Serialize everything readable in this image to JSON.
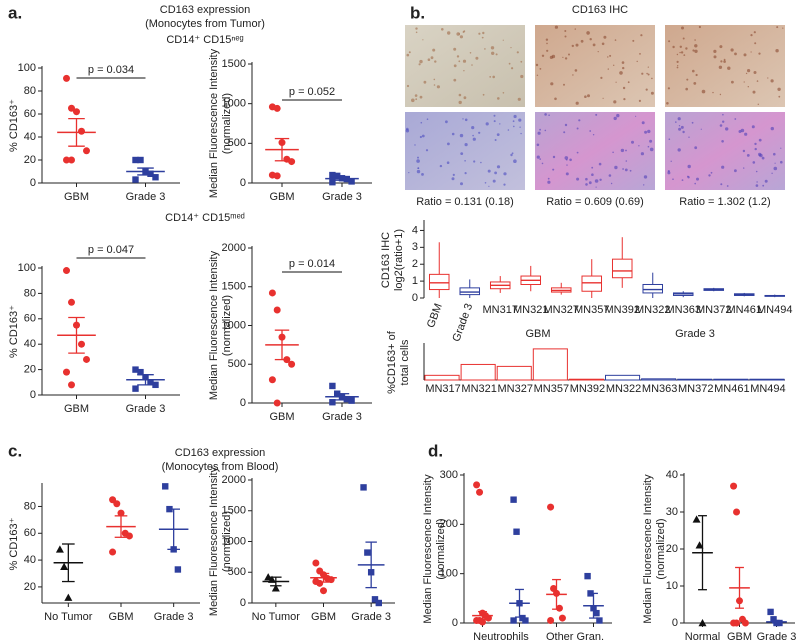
{
  "panel_labels": [
    "a.",
    "b.",
    "c.",
    "d."
  ],
  "headings": {
    "a_title": "CD163 expression",
    "a_subtitle": "(Monocytes from Tumor)",
    "b_title": "CD163 IHC",
    "c_title": "CD163 expression",
    "c_subtitle": "(Monocytes from Blood)"
  },
  "ihc_ratios": [
    "Ratio = 0.131 (0.18)",
    "Ratio = 0.609 (0.69)",
    "Ratio = 1.302 (1.2)"
  ],
  "chart_data": [
    {
      "type": "dot",
      "title": "CD14⁺ CD15ⁿᵉᵍ",
      "ylabel": [
        "% CD163⁺"
      ],
      "categories": [
        "GBM",
        "Grade 3"
      ],
      "colors": [
        "#e8312f",
        "#2e3f9e"
      ],
      "markers": [
        "circle",
        "square"
      ],
      "points": [
        [
          91,
          65,
          62,
          45,
          28,
          20,
          20
        ],
        [
          20,
          20,
          10,
          8,
          5,
          3
        ]
      ],
      "mean": [
        44,
        10
      ],
      "sem": [
        12,
        3
      ],
      "ylim": [
        0,
        100
      ],
      "yticks": [
        0,
        20,
        40,
        60,
        80,
        100
      ],
      "annotation": "p = 0.034"
    },
    {
      "type": "dot",
      "ylabel": [
        "Median Fluorescence Intensity",
        "(normalized)"
      ],
      "categories": [
        "GBM",
        "Grade 3"
      ],
      "colors": [
        "#e8312f",
        "#2e3f9e"
      ],
      "markers": [
        "circle",
        "square"
      ],
      "points": [
        [
          960,
          940,
          510,
          300,
          270,
          100,
          90
        ],
        [
          100,
          90,
          60,
          50,
          20,
          10
        ]
      ],
      "mean": [
        420,
        55
      ],
      "sem": [
        140,
        20
      ],
      "ylim": [
        0,
        1500
      ],
      "yticks": [
        0,
        500,
        1000,
        1500
      ],
      "annotation": "p = 0.052"
    },
    {
      "type": "dot",
      "title": "CD14⁺ CD15ᵐᵉᵈ",
      "ylabel": [
        "% CD163⁺"
      ],
      "categories": [
        "GBM",
        "Grade 3"
      ],
      "colors": [
        "#e8312f",
        "#2e3f9e"
      ],
      "markers": [
        "circle",
        "square"
      ],
      "points": [
        [
          98,
          73,
          55,
          40,
          28,
          18,
          8
        ],
        [
          20,
          18,
          14,
          10,
          8,
          5
        ]
      ],
      "mean": [
        47,
        12
      ],
      "sem": [
        14,
        4
      ],
      "ylim": [
        0,
        100
      ],
      "yticks": [
        0,
        20,
        40,
        60,
        80,
        100
      ],
      "annotation": "p = 0.047"
    },
    {
      "type": "dot",
      "ylabel": [
        "Median Fluorescence Intensity",
        "(normalized)"
      ],
      "categories": [
        "GBM",
        "Grade 3"
      ],
      "colors": [
        "#e8312f",
        "#2e3f9e"
      ],
      "markers": [
        "circle",
        "square"
      ],
      "points": [
        [
          1420,
          1200,
          850,
          560,
          500,
          300,
          0
        ],
        [
          220,
          120,
          80,
          50,
          30,
          10
        ]
      ],
      "mean": [
        750,
        80
      ],
      "sem": [
        190,
        40
      ],
      "ylim": [
        0,
        2000
      ],
      "yticks": [
        0,
        500,
        1000,
        1500,
        2000
      ],
      "annotation": "p = 0.014"
    },
    {
      "type": "box",
      "ylabel": [
        "CD163 IHC",
        "log2(ratio+1)"
      ],
      "categories": [
        "GBM",
        "Grade 3",
        "MN317",
        "MN321",
        "MN327",
        "MN357",
        "MN392",
        "MN322",
        "MN363",
        "MN372",
        "MN461",
        "MN494"
      ],
      "colors": [
        "#e8312f",
        "#2e3f9e",
        "#e8312f",
        "#e8312f",
        "#e8312f",
        "#e8312f",
        "#e8312f",
        "#2e3f9e",
        "#2e3f9e",
        "#2e3f9e",
        "#2e3f9e",
        "#2e3f9e"
      ],
      "whisker_low": [
        0,
        0,
        0.3,
        0.4,
        0.2,
        0,
        0.6,
        0,
        0.05,
        0.4,
        0.1,
        0.05
      ],
      "q1": [
        0.5,
        0.2,
        0.55,
        0.8,
        0.35,
        0.4,
        1.2,
        0.3,
        0.15,
        0.45,
        0.15,
        0.1
      ],
      "median": [
        0.9,
        0.35,
        0.75,
        1.05,
        0.45,
        0.9,
        1.6,
        0.5,
        0.25,
        0.5,
        0.2,
        0.12
      ],
      "q3": [
        1.4,
        0.6,
        0.95,
        1.3,
        0.6,
        1.3,
        2.3,
        0.8,
        0.3,
        0.55,
        0.25,
        0.15
      ],
      "whisker_high": [
        3.3,
        1.1,
        1.3,
        1.9,
        0.9,
        2.3,
        3.6,
        1.5,
        0.4,
        0.6,
        0.3,
        0.2
      ],
      "ylim": [
        0,
        4.5
      ],
      "yticks": [
        0,
        1,
        2,
        3,
        4
      ]
    },
    {
      "type": "bar",
      "ylabel": [
        "%CD163+ of",
        "total cells"
      ],
      "categories": [
        "MN317",
        "MN321",
        "MN327",
        "MN357",
        "MN392",
        "MN322",
        "MN363",
        "MN372",
        "MN461",
        "MN494"
      ],
      "colors": [
        "#e8312f",
        "#e8312f",
        "#e8312f",
        "#e8312f",
        "#e8312f",
        "#2e3f9e",
        "#2e3f9e",
        "#2e3f9e",
        "#2e3f9e",
        "#2e3f9e"
      ],
      "values": [
        12,
        40,
        35,
        80,
        2,
        12,
        3,
        2,
        2,
        2
      ],
      "ylim": [
        0,
        90
      ],
      "group_labels": [
        "GBM",
        "Grade 3"
      ]
    },
    {
      "type": "dot",
      "ylabel": [
        "% CD163⁺"
      ],
      "categories": [
        "No Tumor",
        "GBM",
        "Grade 3"
      ],
      "colors": [
        "#111111",
        "#e8312f",
        "#2e3f9e"
      ],
      "markers": [
        "triangle",
        "circle",
        "square"
      ],
      "points": [
        [
          48,
          35,
          12
        ],
        [
          85,
          82,
          75,
          60,
          58,
          46
        ],
        [
          95,
          78,
          48,
          33
        ]
      ],
      "mean": [
        38,
        65,
        63
      ],
      "sem": [
        14,
        8,
        15
      ],
      "ylim": [
        8,
        96
      ],
      "yticks": [
        20,
        40,
        60,
        80
      ]
    },
    {
      "type": "dot",
      "ylabel": [
        "Median Fluorescence Intensity",
        "(normalized)"
      ],
      "categories": [
        "No Tumor",
        "GBM",
        "Grade 3"
      ],
      "colors": [
        "#111111",
        "#e8312f",
        "#2e3f9e"
      ],
      "markers": [
        "triangle",
        "circle",
        "square"
      ],
      "points": [
        [
          420,
          380,
          240
        ],
        [
          650,
          520,
          460,
          400,
          380,
          350,
          320,
          200
        ],
        [
          1880,
          820,
          500,
          60,
          0
        ]
      ],
      "mean": [
        350,
        410,
        620
      ],
      "sem": [
        70,
        70,
        370
      ],
      "ylim": [
        0,
        2000
      ],
      "yticks": [
        0,
        500,
        1000,
        1500,
        2000
      ]
    },
    {
      "type": "dot",
      "ylabel": [
        "Median Fluorescence Intensity",
        "(normalized)"
      ],
      "categories": [
        "Neutrophils",
        null,
        "Other Gran.",
        null
      ],
      "colors": [
        "#e8312f",
        "#2e3f9e",
        "#e8312f",
        "#2e3f9e"
      ],
      "markers": [
        "circle",
        "square",
        "circle",
        "square"
      ],
      "points": [
        [
          280,
          265,
          20,
          15,
          10,
          5,
          5,
          2
        ],
        [
          250,
          185,
          40,
          10,
          5,
          5
        ],
        [
          235,
          70,
          60,
          30,
          10,
          5
        ],
        [
          95,
          60,
          30,
          20,
          5
        ]
      ],
      "mean": [
        15,
        40,
        58,
        35
      ],
      "sem": [
        8,
        28,
        30,
        25
      ],
      "ylim": [
        0,
        300
      ],
      "yticks": [
        0,
        100,
        200,
        300
      ]
    },
    {
      "type": "dot",
      "ylabel": [
        "Median Fluorescence Intensity",
        "(normalized)"
      ],
      "categories": [
        "Normal",
        "GBM",
        "Grade 3"
      ],
      "colors": [
        "#111111",
        "#e8312f",
        "#2e3f9e"
      ],
      "markers": [
        "triangle",
        "circle",
        "square"
      ],
      "points": [
        [
          28,
          21,
          0
        ],
        [
          37,
          30,
          6,
          1,
          0,
          0,
          0
        ],
        [
          3,
          1,
          0,
          0
        ]
      ],
      "mean": [
        19,
        9.5,
        0.3
      ],
      "sem": [
        10,
        5.5,
        0.3
      ],
      "ylim": [
        0,
        40
      ],
      "yticks": [
        0,
        10,
        20,
        30,
        40
      ]
    }
  ]
}
